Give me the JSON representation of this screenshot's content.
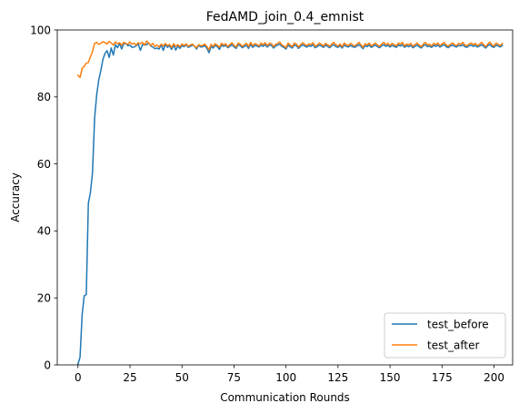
{
  "chart_data": {
    "type": "line",
    "title": "FedAMD_join_0.4_emnist",
    "xlabel": "Communication Rounds",
    "ylabel": "Accuracy",
    "xlim": [
      -9.95,
      208.95
    ],
    "ylim": [
      0,
      100
    ],
    "xticks": [
      0,
      25,
      50,
      75,
      100,
      125,
      150,
      175,
      200
    ],
    "yticks": [
      0,
      20,
      40,
      60,
      80,
      100
    ],
    "legend_position": "lower-right",
    "grid": false,
    "series": [
      {
        "name": "test_before",
        "color": "#1f77b4",
        "values": [
          0.2,
          2.3,
          14.9,
          20.6,
          21.0,
          48.3,
          51.5,
          57.5,
          73.6,
          80.6,
          85.1,
          87.9,
          91.2,
          93.0,
          93.8,
          91.8,
          94.6,
          92.5,
          95.6,
          94.7,
          96.0,
          94.3,
          95.9,
          96.0,
          95.3,
          95.5,
          94.8,
          94.9,
          95.3,
          95.8,
          93.9,
          95.6,
          95.5,
          95.6,
          96.1,
          95.2,
          94.9,
          94.4,
          94.6,
          94.3,
          95.6,
          93.9,
          95.7,
          94.8,
          95.3,
          94.2,
          95.5,
          94.0,
          95.2,
          94.5,
          95.3,
          95.0,
          95.6,
          94.8,
          95.1,
          95.5,
          95.2,
          94.3,
          95.4,
          94.9,
          95.0,
          95.3,
          94.5,
          93.2,
          95.1,
          94.6,
          95.4,
          95.0,
          94.2,
          95.5,
          95.1,
          95.4,
          94.7,
          95.1,
          95.6,
          95.0,
          94.5,
          95.6,
          95.3,
          94.7,
          95.1,
          95.4,
          94.5,
          95.7,
          94.8,
          95.4,
          95.2,
          94.9,
          95.5,
          95.1,
          95.6,
          94.9,
          95.5,
          95.4,
          94.6,
          95.2,
          95.5,
          95.8,
          95.1,
          94.8,
          94.3,
          95.5,
          95.0,
          94.6,
          95.5,
          95.3,
          94.5,
          95.1,
          95.6,
          95.2,
          94.9,
          95.3,
          95.1,
          95.6,
          94.7,
          95.0,
          95.5,
          95.2,
          94.8,
          95.5,
          95.1,
          94.7,
          95.3,
          95.6,
          95.0,
          94.8,
          95.3,
          94.6,
          95.5,
          95.1,
          94.9,
          95.4,
          95.0,
          94.8,
          95.2,
          95.6,
          95.1,
          94.4,
          95.3,
          95.0,
          95.5,
          94.8,
          95.2,
          95.5,
          95.0,
          94.7,
          95.3,
          95.6,
          95.1,
          95.4,
          94.9,
          95.4,
          95.1,
          94.8,
          95.5,
          95.2,
          95.6,
          94.8,
          95.3,
          95.0,
          95.4,
          94.7,
          95.1,
          95.5,
          95.0,
          94.6,
          95.3,
          95.6,
          95.0,
          95.2,
          94.8,
          95.4,
          95.1,
          95.5,
          94.9,
          95.3,
          95.6,
          95.0,
          94.7,
          95.2,
          95.5,
          95.1,
          94.9,
          95.4,
          95.2,
          95.6,
          95.0,
          94.8,
          95.3,
          95.5,
          95.1,
          95.4,
          94.9,
          95.2,
          95.6,
          95.1,
          94.6,
          95.3,
          95.7,
          95.0,
          94.8,
          95.5,
          95.2,
          94.9,
          95.4
        ]
      },
      {
        "name": "test_after",
        "color": "#ff7f0e",
        "values": [
          86.5,
          85.8,
          88.5,
          89.1,
          90.1,
          90.3,
          92.0,
          93.5,
          96.0,
          96.3,
          95.7,
          96.0,
          96.5,
          96.2,
          95.8,
          96.6,
          96.1,
          95.5,
          96.4,
          95.9,
          96.2,
          95.4,
          96.3,
          96.0,
          95.7,
          96.4,
          95.8,
          96.0,
          95.5,
          96.2,
          95.9,
          96.3,
          95.5,
          96.7,
          96.0,
          95.4,
          96.0,
          95.1,
          95.5,
          94.9,
          95.8,
          95.2,
          96.0,
          95.3,
          95.7,
          94.8,
          95.9,
          95.1,
          95.6,
          95.0,
          95.8,
          95.3,
          95.9,
          95.1,
          95.5,
          95.8,
          95.2,
          94.7,
          95.6,
          95.3,
          95.4,
          95.8,
          95.0,
          94.1,
          95.7,
          95.1,
          95.9,
          95.4,
          94.8,
          96.0,
          95.5,
          95.9,
          95.0,
          95.6,
          96.2,
          95.4,
          94.9,
          96.1,
          95.8,
          95.1,
          95.6,
          96.0,
          95.0,
          96.3,
          95.3,
          95.9,
          95.7,
          95.2,
          96.1,
          95.6,
          96.2,
          95.3,
          96.0,
          95.9,
          95.0,
          95.7,
          96.0,
          96.4,
          95.5,
          95.2,
          94.7,
          96.1,
          95.5,
          95.0,
          96.1,
          95.8,
          94.9,
          95.6,
          96.2,
          95.7,
          95.3,
          95.8,
          95.6,
          96.2,
          95.1,
          95.5,
          96.1,
          95.7,
          95.2,
          96.0,
          95.6,
          95.1,
          95.8,
          96.3,
          95.5,
          95.2,
          95.8,
          95.0,
          96.1,
          95.6,
          95.3,
          96.0,
          95.5,
          95.2,
          95.7,
          96.3,
          95.6,
          94.8,
          95.9,
          95.5,
          96.1,
          95.2,
          95.7,
          96.1,
          95.5,
          95.1,
          95.8,
          96.3,
          95.6,
          96.0,
          95.3,
          96.0,
          95.6,
          95.2,
          96.1,
          95.7,
          96.3,
          95.2,
          95.8,
          95.5,
          96.0,
          95.1,
          95.6,
          96.1,
          95.5,
          95.0,
          95.8,
          96.3,
          95.5,
          95.7,
          95.2,
          96.0,
          95.6,
          96.1,
          95.3,
          95.8,
          96.3,
          95.5,
          95.1,
          95.7,
          96.1,
          95.6,
          95.3,
          96.0,
          95.7,
          96.3,
          95.5,
          95.2,
          95.8,
          96.1,
          95.6,
          96.0,
          95.3,
          95.7,
          96.3,
          95.6,
          95.0,
          95.8,
          96.4,
          95.5,
          95.2,
          96.1,
          95.7,
          95.3,
          96.0
        ]
      }
    ]
  }
}
